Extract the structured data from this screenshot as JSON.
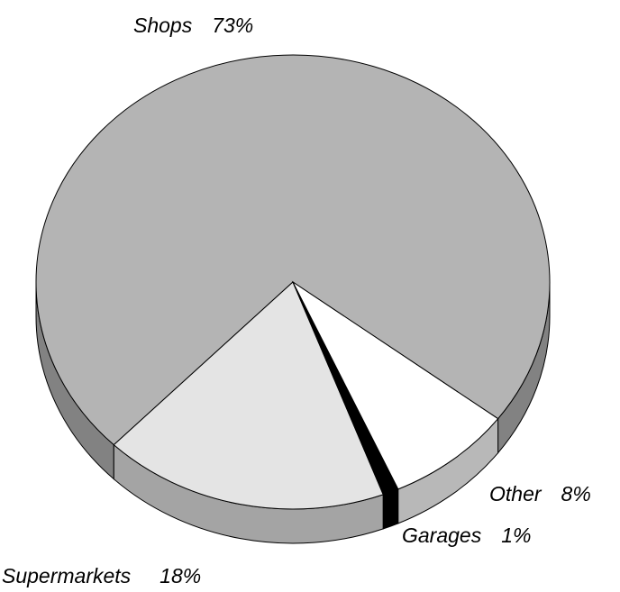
{
  "chart_data": {
    "type": "pie",
    "categories": [
      "Shops",
      "Supermarkets",
      "Garages",
      "Other"
    ],
    "values": [
      73,
      18,
      1,
      8
    ],
    "value_labels": [
      "73%",
      "18%",
      "1%",
      "8%"
    ],
    "colors": [
      "#b4b4b4",
      "#e4e4e4",
      "#000000",
      "#ffffff"
    ]
  }
}
